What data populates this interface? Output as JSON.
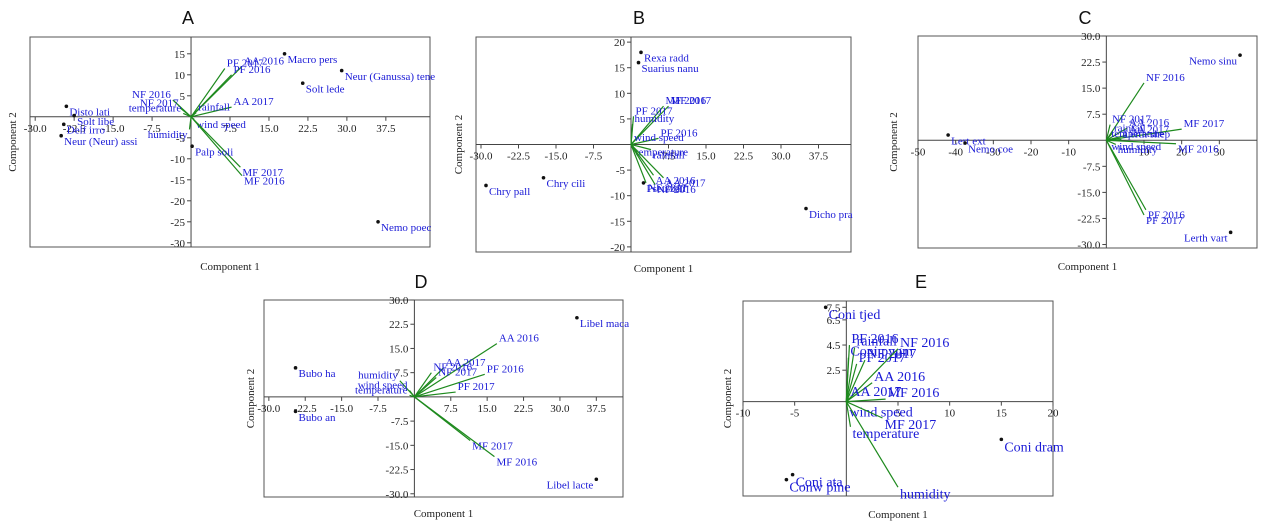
{
  "chart_data": [
    {
      "id": "A",
      "type": "scatter",
      "title": "A",
      "xlabel": "Component 1",
      "ylabel": "Component 2",
      "xlim": [
        -31,
        46
      ],
      "ylim": [
        -31,
        19
      ],
      "xticks": [
        -30.0,
        -22.5,
        -15.0,
        -7.5,
        7.5,
        15.0,
        22.5,
        30.0,
        37.5
      ],
      "xtick_labels": [
        "-30.0",
        "-22.5",
        "-15.0",
        "-7.5",
        "7.5",
        "15.0",
        "22.5",
        "30.0",
        "37.5"
      ],
      "yticks": [
        -30,
        -25,
        -20,
        -15,
        -10,
        -5,
        5,
        10,
        15
      ],
      "ytick_labels": [
        "-30",
        "-25",
        "-20",
        "-15",
        "-10",
        "-5",
        "5",
        "10",
        "15"
      ],
      "label_size": 11,
      "vectors": [
        {
          "label": "PF 2017",
          "x": 6.5,
          "y": 11.5
        },
        {
          "label": "AA 2016",
          "x": 9.8,
          "y": 12.0
        },
        {
          "label": "PF 2016",
          "x": 7.8,
          "y": 10.0
        },
        {
          "label": "AA 2017",
          "x": 7.8,
          "y": 2.3
        },
        {
          "label": "NF 2016",
          "x": -3.5,
          "y": 4.0
        },
        {
          "label": "NF 2017",
          "x": -2.0,
          "y": 2.0
        },
        {
          "label": "temperature",
          "x": -1.5,
          "y": 0.8
        },
        {
          "label": "rainfall",
          "x": 1.0,
          "y": 1.0
        },
        {
          "label": "wind speed",
          "x": 0.6,
          "y": -0.6
        },
        {
          "label": "humidity",
          "x": -0.3,
          "y": -3.0
        },
        {
          "label": "MF 2017",
          "x": 9.5,
          "y": -12.0
        },
        {
          "label": "MF 2016",
          "x": 9.8,
          "y": -14.0
        }
      ],
      "points": [
        {
          "label": "Disto lati",
          "x": -24.0,
          "y": 2.5
        },
        {
          "label": "Solt libe",
          "x": -22.5,
          "y": 0.3
        },
        {
          "label": "Delf irro",
          "x": -24.5,
          "y": -1.8
        },
        {
          "label": "Neur (Neur) assi",
          "x": -25.0,
          "y": -4.5
        },
        {
          "label": "Macro pers",
          "x": 18.0,
          "y": 15.0
        },
        {
          "label": "Solt lede",
          "x": 21.5,
          "y": 8.0
        },
        {
          "label": "Neur (Ganussa) tene",
          "x": 29.0,
          "y": 11.0
        },
        {
          "label": "Palp soli",
          "x": 0.2,
          "y": -7.0
        },
        {
          "label": "Nemo poec",
          "x": 36.0,
          "y": -25.0
        }
      ]
    },
    {
      "id": "B",
      "type": "scatter",
      "title": "B",
      "xlabel": "Component 1",
      "ylabel": "Component 2",
      "xlim": [
        -31,
        44
      ],
      "ylim": [
        -21,
        21
      ],
      "xticks": [
        -30.0,
        -22.5,
        -15.0,
        -7.5,
        7.5,
        15.0,
        22.5,
        30.0,
        37.5
      ],
      "xtick_labels": [
        "-30.0",
        "-22.5",
        "-15.0",
        "-7.5",
        "7.5",
        "15.0",
        "22.5",
        "30.0",
        "37.5"
      ],
      "yticks": [
        -20,
        -15,
        -10,
        -5,
        5,
        10,
        15,
        20
      ],
      "ytick_labels": [
        "-20",
        "-15",
        "-10",
        "-5",
        "5",
        "10",
        "15",
        "20"
      ],
      "label_size": 11,
      "vectors": [
        {
          "label": "MF 2016",
          "x": 6.5,
          "y": 7.5
        },
        {
          "label": "MF 2017",
          "x": 7.5,
          "y": 7.5
        },
        {
          "label": "PF 2017",
          "x": 0.5,
          "y": 5.5
        },
        {
          "label": "humidity",
          "x": 0.3,
          "y": 4.0
        },
        {
          "label": "PF 2016",
          "x": 5.5,
          "y": 1.2
        },
        {
          "label": "wind speed",
          "x": 0.2,
          "y": 0.3
        },
        {
          "label": "temperature",
          "x": 0.5,
          "y": -0.4
        },
        {
          "label": "rainfall",
          "x": 4.0,
          "y": -1.0
        },
        {
          "label": "AA 2016",
          "x": 4.5,
          "y": -6.0
        },
        {
          "label": "AA 2017",
          "x": 6.5,
          "y": -6.5
        },
        {
          "label": "NF 2017",
          "x": 3.0,
          "y": -7.5
        },
        {
          "label": "NF 2016",
          "x": 4.8,
          "y": -7.8
        }
      ],
      "points": [
        {
          "label": "Rexa radd",
          "x": 2.0,
          "y": 18.0
        },
        {
          "label": "Suarius nanu",
          "x": 1.5,
          "y": 16.0
        },
        {
          "label": "Chry cili",
          "x": -17.5,
          "y": -6.5
        },
        {
          "label": "Chry pall",
          "x": -29.0,
          "y": -8.0
        },
        {
          "label": "Pseu zell",
          "x": 2.5,
          "y": -7.5
        },
        {
          "label": "Dicho pra",
          "x": 35.0,
          "y": -12.5
        }
      ]
    },
    {
      "id": "C",
      "type": "scatter",
      "title": "C",
      "xlabel": "Component 1",
      "ylabel": "Component 2",
      "xlim": [
        -50,
        40
      ],
      "ylim": [
        -31,
        30
      ],
      "xticks": [
        -50,
        -40,
        -30,
        -20,
        -10,
        10,
        20,
        30
      ],
      "xtick_labels": [
        "-50",
        "-40",
        "-30",
        "-20",
        "-10",
        "10",
        "20",
        "30"
      ],
      "yticks": [
        -30.0,
        -22.5,
        -15.0,
        -7.5,
        7.5,
        15.0,
        22.5,
        30.0
      ],
      "ytick_labels": [
        "-30.0",
        "-22.5",
        "-15.0",
        "-7.5",
        "7.5",
        "15.0",
        "22.5",
        "30.0"
      ],
      "label_size": 11,
      "vectors": [
        {
          "label": "NF 2016",
          "x": 10.0,
          "y": 16.5
        },
        {
          "label": "NF 2017",
          "x": 1.0,
          "y": 4.5
        },
        {
          "label": "AA 2016",
          "x": 5.5,
          "y": 3.5
        },
        {
          "label": "rainfall",
          "x": 1.5,
          "y": 2.0
        },
        {
          "label": "AA 2017",
          "x": 5.5,
          "y": 1.5
        },
        {
          "label": "MF 2017",
          "x": 20.0,
          "y": 3.2
        },
        {
          "label": "temperature",
          "x": 0.8,
          "y": 0.3
        },
        {
          "label": "Lerth shep",
          "x": 4.0,
          "y": 0.2
        },
        {
          "label": "wind speed",
          "x": 0.8,
          "y": -0.2
        },
        {
          "label": "MF 2016",
          "x": 18.5,
          "y": -1.0
        },
        {
          "label": "humidity",
          "x": 2.5,
          "y": -1.2
        },
        {
          "label": "PF 2016",
          "x": 10.5,
          "y": -20.0
        },
        {
          "label": "PF 2017",
          "x": 10.0,
          "y": -21.5
        }
      ],
      "points": [
        {
          "label": "Nemo sinu",
          "x": 35.5,
          "y": 24.5
        },
        {
          "label": "Lert ext",
          "x": -42.0,
          "y": 1.5
        },
        {
          "label": "Nemo coe",
          "x": -37.5,
          "y": -0.8
        },
        {
          "label": "Lerth vart",
          "x": 33.0,
          "y": -26.5
        }
      ]
    },
    {
      "id": "D",
      "type": "scatter",
      "title": "D",
      "xlabel": "Component 1",
      "ylabel": "Component 2",
      "xlim": [
        -31,
        43
      ],
      "ylim": [
        -31,
        30
      ],
      "xticks": [
        -30.0,
        -22.5,
        -15.0,
        -7.5,
        7.5,
        15.0,
        22.5,
        30.0,
        37.5
      ],
      "xtick_labels": [
        "-30.0",
        "-22.5",
        "-15.0",
        "-7.5",
        "7.5",
        "15.0",
        "22.5",
        "30.0",
        "37.5"
      ],
      "yticks": [
        -30.0,
        -22.5,
        -15.0,
        -7.5,
        7.5,
        15.0,
        22.5,
        30.0
      ],
      "ytick_labels": [
        "-30.0",
        "-22.5",
        "-15.0",
        "-7.5",
        "7.5",
        "15.0",
        "22.5",
        "30.0"
      ],
      "label_size": 11,
      "vectors": [
        {
          "label": "AA 2016",
          "x": 17.0,
          "y": 16.5
        },
        {
          "label": "AA 2017",
          "x": 6.0,
          "y": 9.0
        },
        {
          "label": "NF 2016",
          "x": 3.5,
          "y": 7.5
        },
        {
          "label": "NF 2017",
          "x": 4.5,
          "y": 6.0
        },
        {
          "label": "PF 2016",
          "x": 14.5,
          "y": 7.0
        },
        {
          "label": "humidity",
          "x": -3.0,
          "y": 5.0
        },
        {
          "label": "wind speed",
          "x": -1.0,
          "y": 2.0
        },
        {
          "label": "PF 2017",
          "x": 8.5,
          "y": 1.5
        },
        {
          "label": "temperature",
          "x": -1.0,
          "y": 0.5
        },
        {
          "label": "MF 2017",
          "x": 11.5,
          "y": -13.5
        },
        {
          "label": "MF 2016",
          "x": 16.5,
          "y": -18.5
        }
      ],
      "points": [
        {
          "label": "Libel maca",
          "x": 33.5,
          "y": 24.5
        },
        {
          "label": "Bubo ha",
          "x": -24.5,
          "y": 9.0
        },
        {
          "label": "Bubo an",
          "x": -24.5,
          "y": -4.5
        },
        {
          "label": "Libel lacte",
          "x": 37.5,
          "y": -25.5
        }
      ]
    },
    {
      "id": "E",
      "type": "scatter",
      "title": "E",
      "xlabel": "Component 1",
      "ylabel": "Component 2",
      "xlim": [
        -10,
        20
      ],
      "ylim": [
        -7.5,
        8.0
      ],
      "xticks": [
        -10,
        -5,
        5,
        10,
        15,
        20
      ],
      "xtick_labels": [
        "-10",
        "-5",
        "5",
        "10",
        "15",
        "20"
      ],
      "yticks": [
        2.5,
        4.5,
        6.5,
        7.5
      ],
      "ytick_labels": [
        "2.5",
        "4.5",
        "6.5",
        "7.5"
      ],
      "label_size": 14,
      "vectors": [
        {
          "label": "PF 2016",
          "x": 0.3,
          "y": 4.5
        },
        {
          "label": "rainfall",
          "x": 0.8,
          "y": 4.3
        },
        {
          "label": "Coni pygm",
          "x": 0.2,
          "y": 3.5
        },
        {
          "label": "PF 2017",
          "x": 1.0,
          "y": 3.0
        },
        {
          "label": "NF 2017",
          "x": 1.8,
          "y": 3.3
        },
        {
          "label": "NF 2016",
          "x": 5.0,
          "y": 4.2
        },
        {
          "label": "AA 2016",
          "x": 2.5,
          "y": 1.5
        },
        {
          "label": "AA 2017",
          "x": 0.2,
          "y": 0.3
        },
        {
          "label": "wind speed",
          "x": 0.1,
          "y": -0.3
        },
        {
          "label": "MF 2016",
          "x": 3.8,
          "y": 0.2
        },
        {
          "label": "MF 2017",
          "x": 3.5,
          "y": -1.3
        },
        {
          "label": "temperature",
          "x": 0.4,
          "y": -2.0
        },
        {
          "label": "humidity",
          "x": 5.0,
          "y": -6.8
        }
      ],
      "points": [
        {
          "label": "Coni tjed",
          "x": -2.0,
          "y": 7.5
        },
        {
          "label": "Coni dram",
          "x": 15.0,
          "y": -3.0
        },
        {
          "label": "Coni ata",
          "x": -5.2,
          "y": -5.8
        },
        {
          "label": "Conw pine",
          "x": -5.8,
          "y": -6.2
        }
      ]
    }
  ]
}
